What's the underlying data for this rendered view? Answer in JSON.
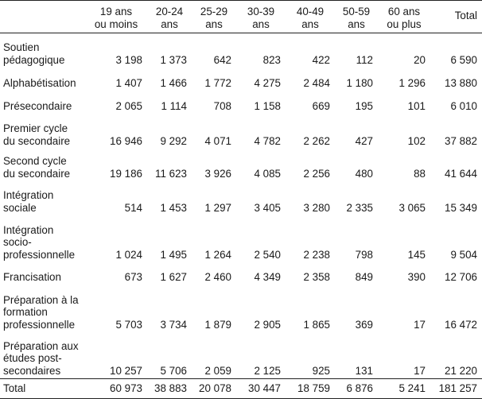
{
  "table": {
    "headers": [
      "",
      "19 ans\nou moins",
      "20-24\nans",
      "25-29\nans",
      "30-39\nans",
      "40-49\nans",
      "50-59\nans",
      "60 ans\nou plus",
      "Total"
    ],
    "rows": [
      {
        "label": "Soutien\npédagogique",
        "values": [
          "3 198",
          "1 373",
          "642",
          "823",
          "422",
          "112",
          "20",
          "6 590"
        ]
      },
      {
        "label": "Alphabétisation",
        "values": [
          "1 407",
          "1 466",
          "1 772",
          "4 275",
          "2 484",
          "1 180",
          "1 296",
          "13 880"
        ]
      },
      {
        "label": "Présecondaire",
        "values": [
          "2 065",
          "1 114",
          "708",
          "1 158",
          "669",
          "195",
          "101",
          "6 010"
        ]
      },
      {
        "label": "Premier cycle\ndu secondaire",
        "values": [
          "16 946",
          "9 292",
          "4 071",
          "4 782",
          "2 262",
          "427",
          "102",
          "37 882"
        ]
      },
      {
        "label": "Second cycle\ndu secondaire",
        "values": [
          "19 186",
          "11 623",
          "3 926",
          "4 085",
          "2 256",
          "480",
          "88",
          "41 644"
        ]
      },
      {
        "label": "Intégration\nsociale",
        "values": [
          "514",
          "1 453",
          "1 297",
          "3 405",
          "3 280",
          "2 335",
          "3 065",
          "15 349"
        ]
      },
      {
        "label": "Intégration\nsocio-\nprofessionnelle",
        "values": [
          "1 024",
          "1 495",
          "1 264",
          "2 540",
          "2 238",
          "798",
          "145",
          "9 504"
        ]
      },
      {
        "label": "Francisation",
        "values": [
          "673",
          "1 627",
          "2 460",
          "4 349",
          "2 358",
          "849",
          "390",
          "12 706"
        ]
      },
      {
        "label": "Préparation à la\nformation\nprofessionnelle",
        "values": [
          "5 703",
          "3 734",
          "1 879",
          "2 905",
          "1 865",
          "369",
          "17",
          "16 472"
        ]
      },
      {
        "label": "Préparation aux\nétudes post-\nsecondaires",
        "values": [
          "10 257",
          "5 706",
          "2 059",
          "2 125",
          "925",
          "131",
          "17",
          "21 220"
        ]
      }
    ],
    "total_row": {
      "label": "Total",
      "values": [
        "60 973",
        "38 883",
        "20 078",
        "30 447",
        "18 759",
        "6 876",
        "5 241",
        "181 257"
      ]
    }
  }
}
